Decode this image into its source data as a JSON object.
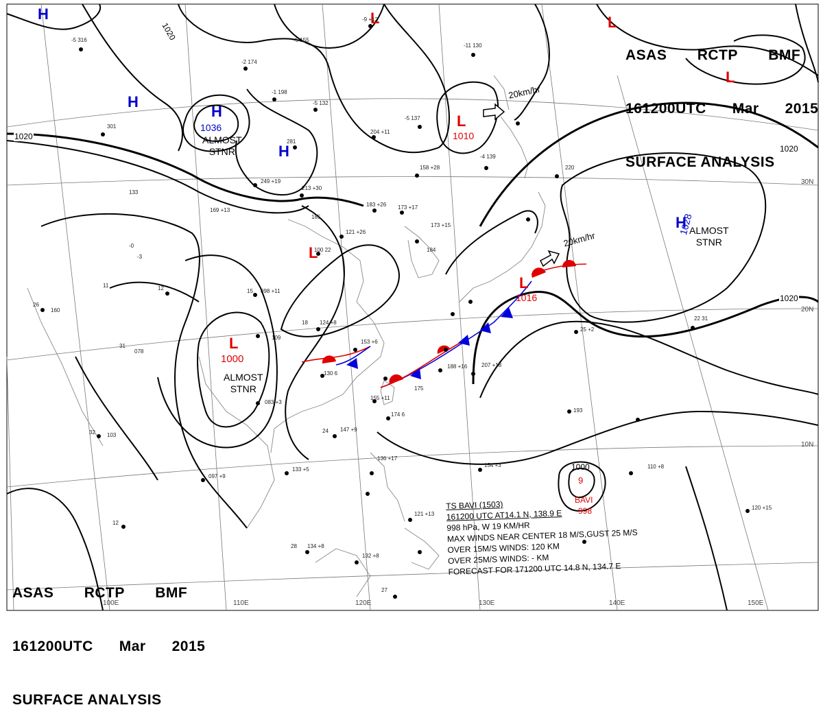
{
  "header_top": {
    "line1": [
      "ASAS",
      "RCTP",
      "BMF"
    ],
    "line2": [
      "161200UTC",
      "Mar",
      "2015"
    ],
    "line3": "SURFACE ANALYSIS"
  },
  "header_bottom": {
    "line1": [
      "ASAS",
      "RCTP",
      "BMF"
    ],
    "line2": [
      "161200UTC",
      "Mar",
      "2015"
    ],
    "line3": "SURFACE ANALYSIS"
  },
  "colors": {
    "high": "#0000cc",
    "low": "#e00000",
    "cold_front": "#0000dd",
    "warm_front": "#e00000",
    "isobar": "#000000",
    "land": "#888888",
    "grid": "#777777"
  },
  "pressure_systems": [
    {
      "id": "h1",
      "type": "H",
      "value": ""
    },
    {
      "id": "h2",
      "type": "H",
      "value": ""
    },
    {
      "id": "h3",
      "type": "H",
      "value": "1036"
    },
    {
      "id": "h4",
      "type": "H",
      "value": ""
    },
    {
      "id": "h5",
      "type": "H",
      "value": "1028"
    },
    {
      "id": "l1",
      "type": "L",
      "value": ""
    },
    {
      "id": "l2",
      "type": "L",
      "value": "1010"
    },
    {
      "id": "l3",
      "type": "L",
      "value": ""
    },
    {
      "id": "l4",
      "type": "L",
      "value": "1000"
    },
    {
      "id": "l5",
      "type": "L",
      "value": "1016"
    },
    {
      "id": "l6",
      "type": "L",
      "value": ""
    },
    {
      "id": "l7",
      "type": "L",
      "value": ""
    }
  ],
  "stationary_labels": [
    "ALMOST\nSTNR",
    "ALMOST\nSTNR",
    "ALMOST\nSTNR"
  ],
  "movement_labels": [
    "20km/hr",
    "20km/hr"
  ],
  "isobar_labels": [
    "1020",
    "1020",
    "1020",
    "1020"
  ],
  "grid_labels": {
    "lat": [
      "30N",
      "20N",
      "10N"
    ],
    "lon": [
      "100E",
      "110E",
      "120E",
      "130E",
      "140E",
      "150E"
    ]
  },
  "typhoon": {
    "pressure": "1000",
    "symbol": "9",
    "name": "BAVI",
    "value": "998",
    "bulletin": [
      "TS  BAVI  (1503)",
      "161200 UTC  AT14.1 N, 138.9 E",
      "998 hPa, W  19 KM/HR",
      "MAX WINDS NEAR CENTER 18 M/S,GUST 25 M/S",
      "OVER 15M/S WINDS: 120 KM",
      "OVER 25M/S WINDS: - KM",
      "FORECAST FOR 171200 UTC 14.8 N, 134.7 E"
    ]
  },
  "station_obs": [
    "-5 316",
    "301",
    "-2 174",
    "-5 155",
    "-1 198",
    "-5 132",
    "-9 +12",
    "-4 139",
    "-5 137",
    "204 +11",
    "158 +28",
    "-11 130",
    "220",
    "281",
    "249 +19",
    "213 +30",
    "183 +26",
    "173 +17",
    "185",
    "121 +26",
    "100 22",
    "173 +15",
    "184",
    "098 +11",
    "124 +8",
    "109",
    "153 +6",
    "130 6",
    "188 +16",
    "175",
    "207 +18",
    "155 +11",
    "174 6",
    "147 +9",
    "083 +3",
    "103",
    "097 +9",
    "133 +5",
    "134 +8",
    "132 +8",
    "121 +13",
    "136 +17",
    "154 +3",
    "110 +8",
    "120 +15",
    "25 +2",
    "22 31",
    "193",
    "078",
    "160",
    "133",
    "169 +13",
    "-0",
    "-3",
    "26",
    "32",
    "31",
    "12",
    "15",
    "11",
    "24",
    "28",
    "27",
    "18",
    "12"
  ]
}
